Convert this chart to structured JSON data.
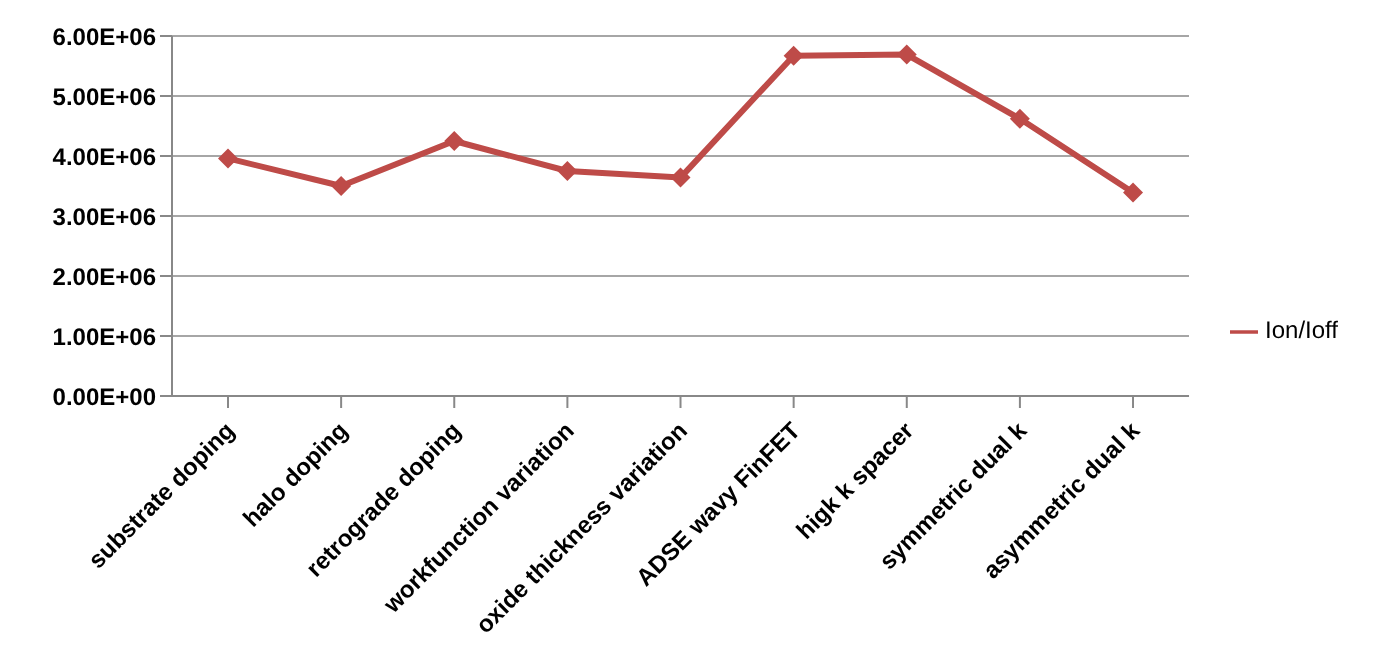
{
  "chart_data": {
    "type": "line",
    "categories": [
      "substrate doping",
      "halo doping",
      "retrograde doping",
      "workfunction variation",
      "oxide thickness variation",
      "ADSE wavy FinFET",
      "higk k spacer",
      "symmetric dual k",
      "asymmetric dual k"
    ],
    "series": [
      {
        "name": "Ion/Ioff",
        "color": "#be4b48",
        "values": [
          3960000,
          3500000,
          4250000,
          3750000,
          3640000,
          5670000,
          5690000,
          4620000,
          3390000
        ]
      }
    ],
    "ylim": [
      0,
      6000000
    ],
    "yticks": [
      {
        "value": 0,
        "label": "0.00E+00"
      },
      {
        "value": 1000000,
        "label": "1.00E+06"
      },
      {
        "value": 2000000,
        "label": "2.00E+06"
      },
      {
        "value": 3000000,
        "label": "3.00E+06"
      },
      {
        "value": 4000000,
        "label": "4.00E+06"
      },
      {
        "value": 5000000,
        "label": "5.00E+06"
      },
      {
        "value": 6000000,
        "label": "6.00E+06"
      }
    ],
    "grid": "y",
    "legend": "right",
    "marker": "diamond",
    "line_style": "solid"
  }
}
